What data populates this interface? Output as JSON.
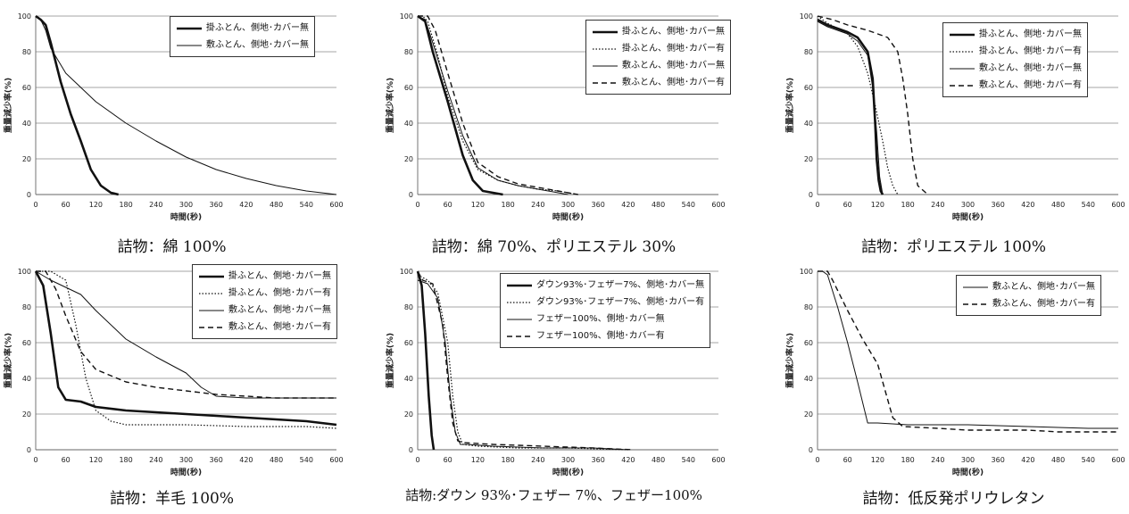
{
  "chart_data": [
    {
      "type": "line",
      "caption": "詰物：綿 100%",
      "ylabel": "重量減少率(%)",
      "xlabel": "時間(秒)",
      "xlim": [
        0,
        600
      ],
      "ylim": [
        0,
        100
      ],
      "xticks": [
        0,
        60,
        120,
        180,
        240,
        300,
        360,
        420,
        480,
        540,
        600
      ],
      "yticks": [
        0,
        20,
        40,
        60,
        80,
        100
      ],
      "series": [
        {
          "name": "掛ふとん、側地･カバー無",
          "style": "thick",
          "x": [
            0,
            10,
            20,
            30,
            50,
            70,
            90,
            110,
            130,
            150,
            165
          ],
          "y": [
            100,
            98,
            95,
            85,
            63,
            45,
            30,
            14,
            5,
            1,
            0
          ]
        },
        {
          "name": "敷ふとん、側地･カバー無",
          "style": "thin",
          "x": [
            0,
            10,
            20,
            30,
            60,
            120,
            180,
            240,
            300,
            360,
            420,
            480,
            540,
            600
          ],
          "y": [
            100,
            98,
            92,
            82,
            68,
            52,
            40,
            30,
            21,
            14,
            9,
            5,
            2,
            0
          ]
        }
      ]
    },
    {
      "type": "line",
      "caption": "詰物：綿 70%、ポリエステル 30%",
      "ylabel": "重量減少率(%)",
      "xlabel": "時間(秒)",
      "xlim": [
        0,
        600
      ],
      "ylim": [
        0,
        100
      ],
      "xticks": [
        0,
        60,
        120,
        180,
        240,
        300,
        360,
        420,
        480,
        540,
        600
      ],
      "yticks": [
        0,
        20,
        40,
        60,
        80,
        100
      ],
      "series": [
        {
          "name": "掛ふとん、側地･カバー無",
          "style": "thick",
          "x": [
            0,
            15,
            30,
            60,
            90,
            110,
            130,
            150,
            170
          ],
          "y": [
            100,
            97,
            80,
            52,
            22,
            8,
            2,
            1,
            0
          ]
        },
        {
          "name": "掛ふとん、側地･カバー有",
          "style": "dotted",
          "x": [
            0,
            10,
            20,
            40,
            60,
            90,
            120,
            160,
            200,
            240,
            280,
            320
          ],
          "y": [
            100,
            100,
            97,
            78,
            55,
            30,
            14,
            8,
            5,
            3,
            2,
            0
          ]
        },
        {
          "name": "敷ふとん、側地･カバー無",
          "style": "thin",
          "x": [
            0,
            15,
            30,
            60,
            90,
            120,
            160,
            200,
            240,
            300
          ],
          "y": [
            100,
            98,
            85,
            58,
            33,
            15,
            8,
            5,
            3,
            0
          ]
        },
        {
          "name": "敷ふとん、側地･カバー有",
          "style": "dashed",
          "x": [
            0,
            20,
            35,
            60,
            90,
            120,
            160,
            200,
            240,
            280,
            320
          ],
          "y": [
            100,
            100,
            92,
            68,
            40,
            18,
            10,
            6,
            4,
            2,
            0
          ]
        }
      ]
    },
    {
      "type": "line",
      "caption": "詰物：ポリエステル 100%",
      "ylabel": "重量減少率(%)",
      "xlabel": "時間(秒)",
      "xlim": [
        0,
        600
      ],
      "ylim": [
        0,
        100
      ],
      "xticks": [
        0,
        60,
        120,
        180,
        240,
        300,
        360,
        420,
        480,
        540,
        600
      ],
      "yticks": [
        0,
        20,
        40,
        60,
        80,
        100
      ],
      "series": [
        {
          "name": "掛ふとん、側地･カバー無",
          "style": "thick",
          "x": [
            0,
            20,
            40,
            60,
            80,
            100,
            110,
            115,
            118,
            122,
            126,
            130
          ],
          "y": [
            98,
            95,
            93,
            91,
            88,
            80,
            65,
            40,
            20,
            8,
            2,
            0
          ]
        },
        {
          "name": "掛ふとん、側地･カバー有",
          "style": "dotted",
          "x": [
            0,
            20,
            40,
            60,
            80,
            100,
            115,
            130,
            140,
            150,
            160
          ],
          "y": [
            100,
            96,
            93,
            90,
            83,
            68,
            50,
            30,
            15,
            5,
            0
          ]
        },
        {
          "name": "敷ふとん、側地･カバー無",
          "style": "thin",
          "x": [
            0,
            20,
            40,
            60,
            80,
            100,
            110,
            118,
            124,
            130
          ],
          "y": [
            97,
            94,
            92,
            90,
            86,
            78,
            60,
            35,
            10,
            0
          ]
        },
        {
          "name": "敷ふとん、側地･カバー有",
          "style": "dashed",
          "x": [
            0,
            30,
            60,
            100,
            140,
            160,
            170,
            180,
            190,
            200,
            220
          ],
          "y": [
            100,
            98,
            95,
            92,
            88,
            80,
            65,
            45,
            20,
            5,
            0
          ]
        }
      ]
    },
    {
      "type": "line",
      "caption": "詰物：羊毛 100%",
      "ylabel": "重量減少率(%)",
      "xlabel": "時間(秒)",
      "xlim": [
        0,
        600
      ],
      "ylim": [
        0,
        100
      ],
      "xticks": [
        0,
        60,
        120,
        180,
        240,
        300,
        360,
        420,
        480,
        540,
        600
      ],
      "yticks": [
        0,
        20,
        40,
        60,
        80,
        100
      ],
      "series": [
        {
          "name": "掛ふとん、側地･カバー無",
          "style": "thick",
          "x": [
            0,
            15,
            30,
            45,
            60,
            90,
            120,
            180,
            300,
            420,
            540,
            600
          ],
          "y": [
            100,
            92,
            65,
            35,
            28,
            27,
            24,
            22,
            20,
            18,
            16,
            14
          ]
        },
        {
          "name": "掛ふとん、側地･カバー有",
          "style": "dotted",
          "x": [
            0,
            30,
            60,
            80,
            100,
            120,
            150,
            180,
            240,
            300,
            420,
            540,
            600
          ],
          "y": [
            100,
            100,
            95,
            70,
            40,
            22,
            16,
            14,
            14,
            14,
            13,
            13,
            12
          ]
        },
        {
          "name": "敷ふとん、側地･カバー無",
          "style": "thin",
          "x": [
            0,
            30,
            60,
            90,
            120,
            180,
            240,
            300,
            330,
            360,
            420,
            480,
            540,
            600
          ],
          "y": [
            100,
            95,
            91,
            87,
            78,
            62,
            52,
            43,
            35,
            30,
            29,
            29,
            29,
            29
          ]
        },
        {
          "name": "敷ふとん、側地･カバー有",
          "style": "dashed",
          "x": [
            0,
            20,
            40,
            60,
            90,
            120,
            180,
            240,
            300,
            360,
            420,
            480,
            540,
            600
          ],
          "y": [
            100,
            100,
            90,
            75,
            55,
            45,
            38,
            35,
            33,
            31,
            30,
            29,
            29,
            29
          ]
        }
      ]
    },
    {
      "type": "line",
      "caption": "詰物:ダウン 93%･フェザー 7％、フェザー100%",
      "ylabel": "重量減少率(%)",
      "xlabel": "時間(秒)",
      "xlim": [
        0,
        600
      ],
      "ylim": [
        0,
        100
      ],
      "xticks": [
        0,
        60,
        120,
        180,
        240,
        300,
        360,
        420,
        480,
        540,
        600
      ],
      "yticks": [
        0,
        20,
        40,
        60,
        80,
        100
      ],
      "series": [
        {
          "name": "ダウン93%･フェザー7%、側地･カバー無",
          "style": "thick",
          "x": [
            0,
            8,
            15,
            22,
            28,
            32
          ],
          "y": [
            100,
            92,
            65,
            30,
            8,
            0
          ]
        },
        {
          "name": "ダウン93%･フェザー7%、側地･カバー有",
          "style": "dotted",
          "x": [
            0,
            20,
            40,
            60,
            70,
            80,
            90,
            120,
            200,
            300,
            420
          ],
          "y": [
            98,
            95,
            88,
            60,
            30,
            10,
            3,
            2,
            1,
            1,
            0
          ]
        },
        {
          "name": "フェザー100%、側地･カバー無",
          "style": "thin",
          "x": [
            0,
            20,
            40,
            55,
            65,
            75,
            85,
            100,
            150,
            250,
            350,
            420
          ],
          "y": [
            95,
            93,
            85,
            60,
            30,
            10,
            3,
            3,
            2,
            1,
            1,
            0
          ]
        },
        {
          "name": "フェザー100%、側地･カバー有",
          "style": "dashed",
          "x": [
            0,
            10,
            30,
            50,
            60,
            70,
            80,
            90,
            150,
            250,
            350,
            430
          ],
          "y": [
            100,
            95,
            93,
            70,
            40,
            15,
            5,
            4,
            3,
            2,
            1,
            0
          ]
        }
      ]
    },
    {
      "type": "line",
      "caption": "詰物：低反発ポリウレタン",
      "ylabel": "重量減少率(%)",
      "xlabel": "時間(秒)",
      "xlim": [
        0,
        600
      ],
      "ylim": [
        0,
        100
      ],
      "xticks": [
        0,
        60,
        120,
        180,
        240,
        300,
        360,
        420,
        480,
        540,
        600
      ],
      "yticks": [
        0,
        20,
        40,
        60,
        80,
        100
      ],
      "series": [
        {
          "name": "敷ふとん、側地･カバー無",
          "style": "thin",
          "x": [
            0,
            10,
            20,
            40,
            60,
            80,
            100,
            120,
            180,
            300,
            420,
            540,
            600
          ],
          "y": [
            100,
            100,
            98,
            80,
            60,
            38,
            15,
            15,
            14,
            14,
            13,
            12,
            12
          ]
        },
        {
          "name": "敷ふとん、側地･カバー有",
          "style": "dashed",
          "x": [
            0,
            20,
            30,
            60,
            90,
            120,
            150,
            170,
            240,
            300,
            360,
            420,
            480,
            540,
            600
          ],
          "y": [
            100,
            100,
            95,
            78,
            62,
            48,
            18,
            13,
            12,
            11,
            11,
            11,
            10,
            10,
            10
          ]
        }
      ]
    }
  ]
}
